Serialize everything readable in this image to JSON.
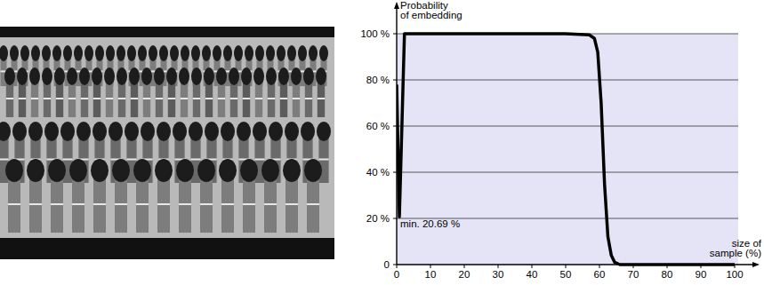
{
  "chart_data": {
    "type": "line",
    "y_label": [
      "Probability",
      "of embedding"
    ],
    "x_label": [
      "size of",
      "sample (%)"
    ],
    "annotations": [
      "min. 20.69 %"
    ],
    "x": [
      0,
      0.8,
      2.3,
      10,
      20,
      30,
      40,
      50,
      57,
      58.5,
      59.5,
      60.5,
      61.5,
      62.5,
      63.5,
      64.5,
      66,
      70,
      80,
      90,
      100
    ],
    "values": [
      78,
      20.69,
      100,
      100,
      100,
      100,
      100,
      100,
      99.5,
      98,
      92,
      70,
      35,
      12,
      4,
      1,
      0,
      0,
      0,
      0,
      0
    ],
    "color": "#000000",
    "xlim": [
      0,
      100
    ],
    "ylim": [
      0,
      100
    ],
    "xticks": [
      0,
      10,
      20,
      30,
      40,
      50,
      60,
      70,
      80,
      90,
      100
    ],
    "yticks": [
      0,
      {
        "value": 20,
        "label": "20 %"
      },
      {
        "value": 40,
        "label": "40 %"
      },
      {
        "value": 60,
        "label": "60 %"
      },
      {
        "value": 80,
        "label": "80 %"
      },
      {
        "value": 100,
        "label": "100 %"
      }
    ],
    "grid": true
  }
}
